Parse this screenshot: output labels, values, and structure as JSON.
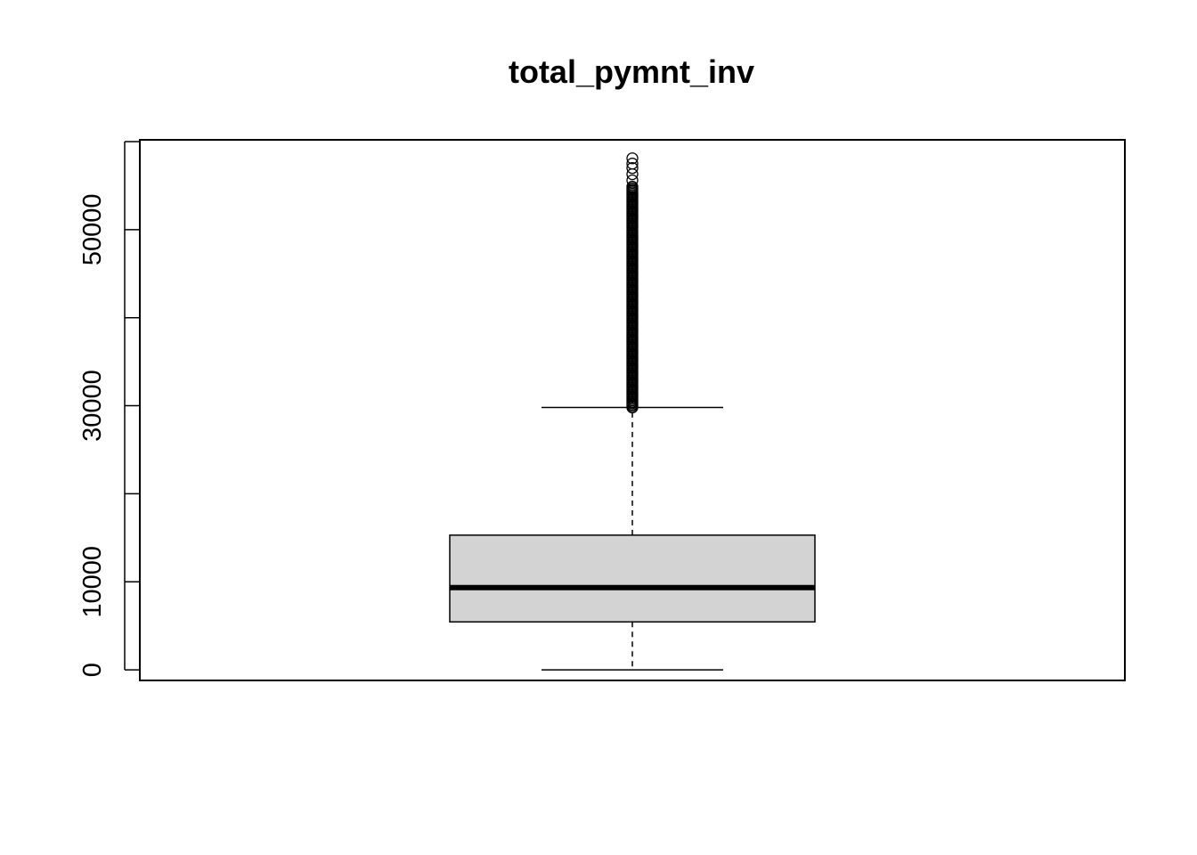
{
  "chart_data": {
    "type": "boxplot",
    "title": "total_pymnt_inv",
    "xlabel": "",
    "ylabel": "",
    "ylim": [
      -1200,
      60200
    ],
    "y_ticks": [
      0,
      10000,
      20000,
      30000,
      40000,
      50000,
      60000
    ],
    "y_tick_labels": [
      "0",
      "10000",
      "",
      "30000",
      "",
      "50000",
      ""
    ],
    "grid": false,
    "box": {
      "lower_whisker": 0,
      "q1": 5450,
      "median": 9350,
      "q3": 15300,
      "upper_whisker": 29800
    },
    "outliers": {
      "min": 29800,
      "max": 58100,
      "dense_until": 55000,
      "sparse_points": [
        55600,
        56300,
        57000,
        57500,
        58100
      ]
    },
    "colors": {
      "box_fill": "#d3d3d3",
      "line": "#000000",
      "background": "#ffffff"
    }
  }
}
